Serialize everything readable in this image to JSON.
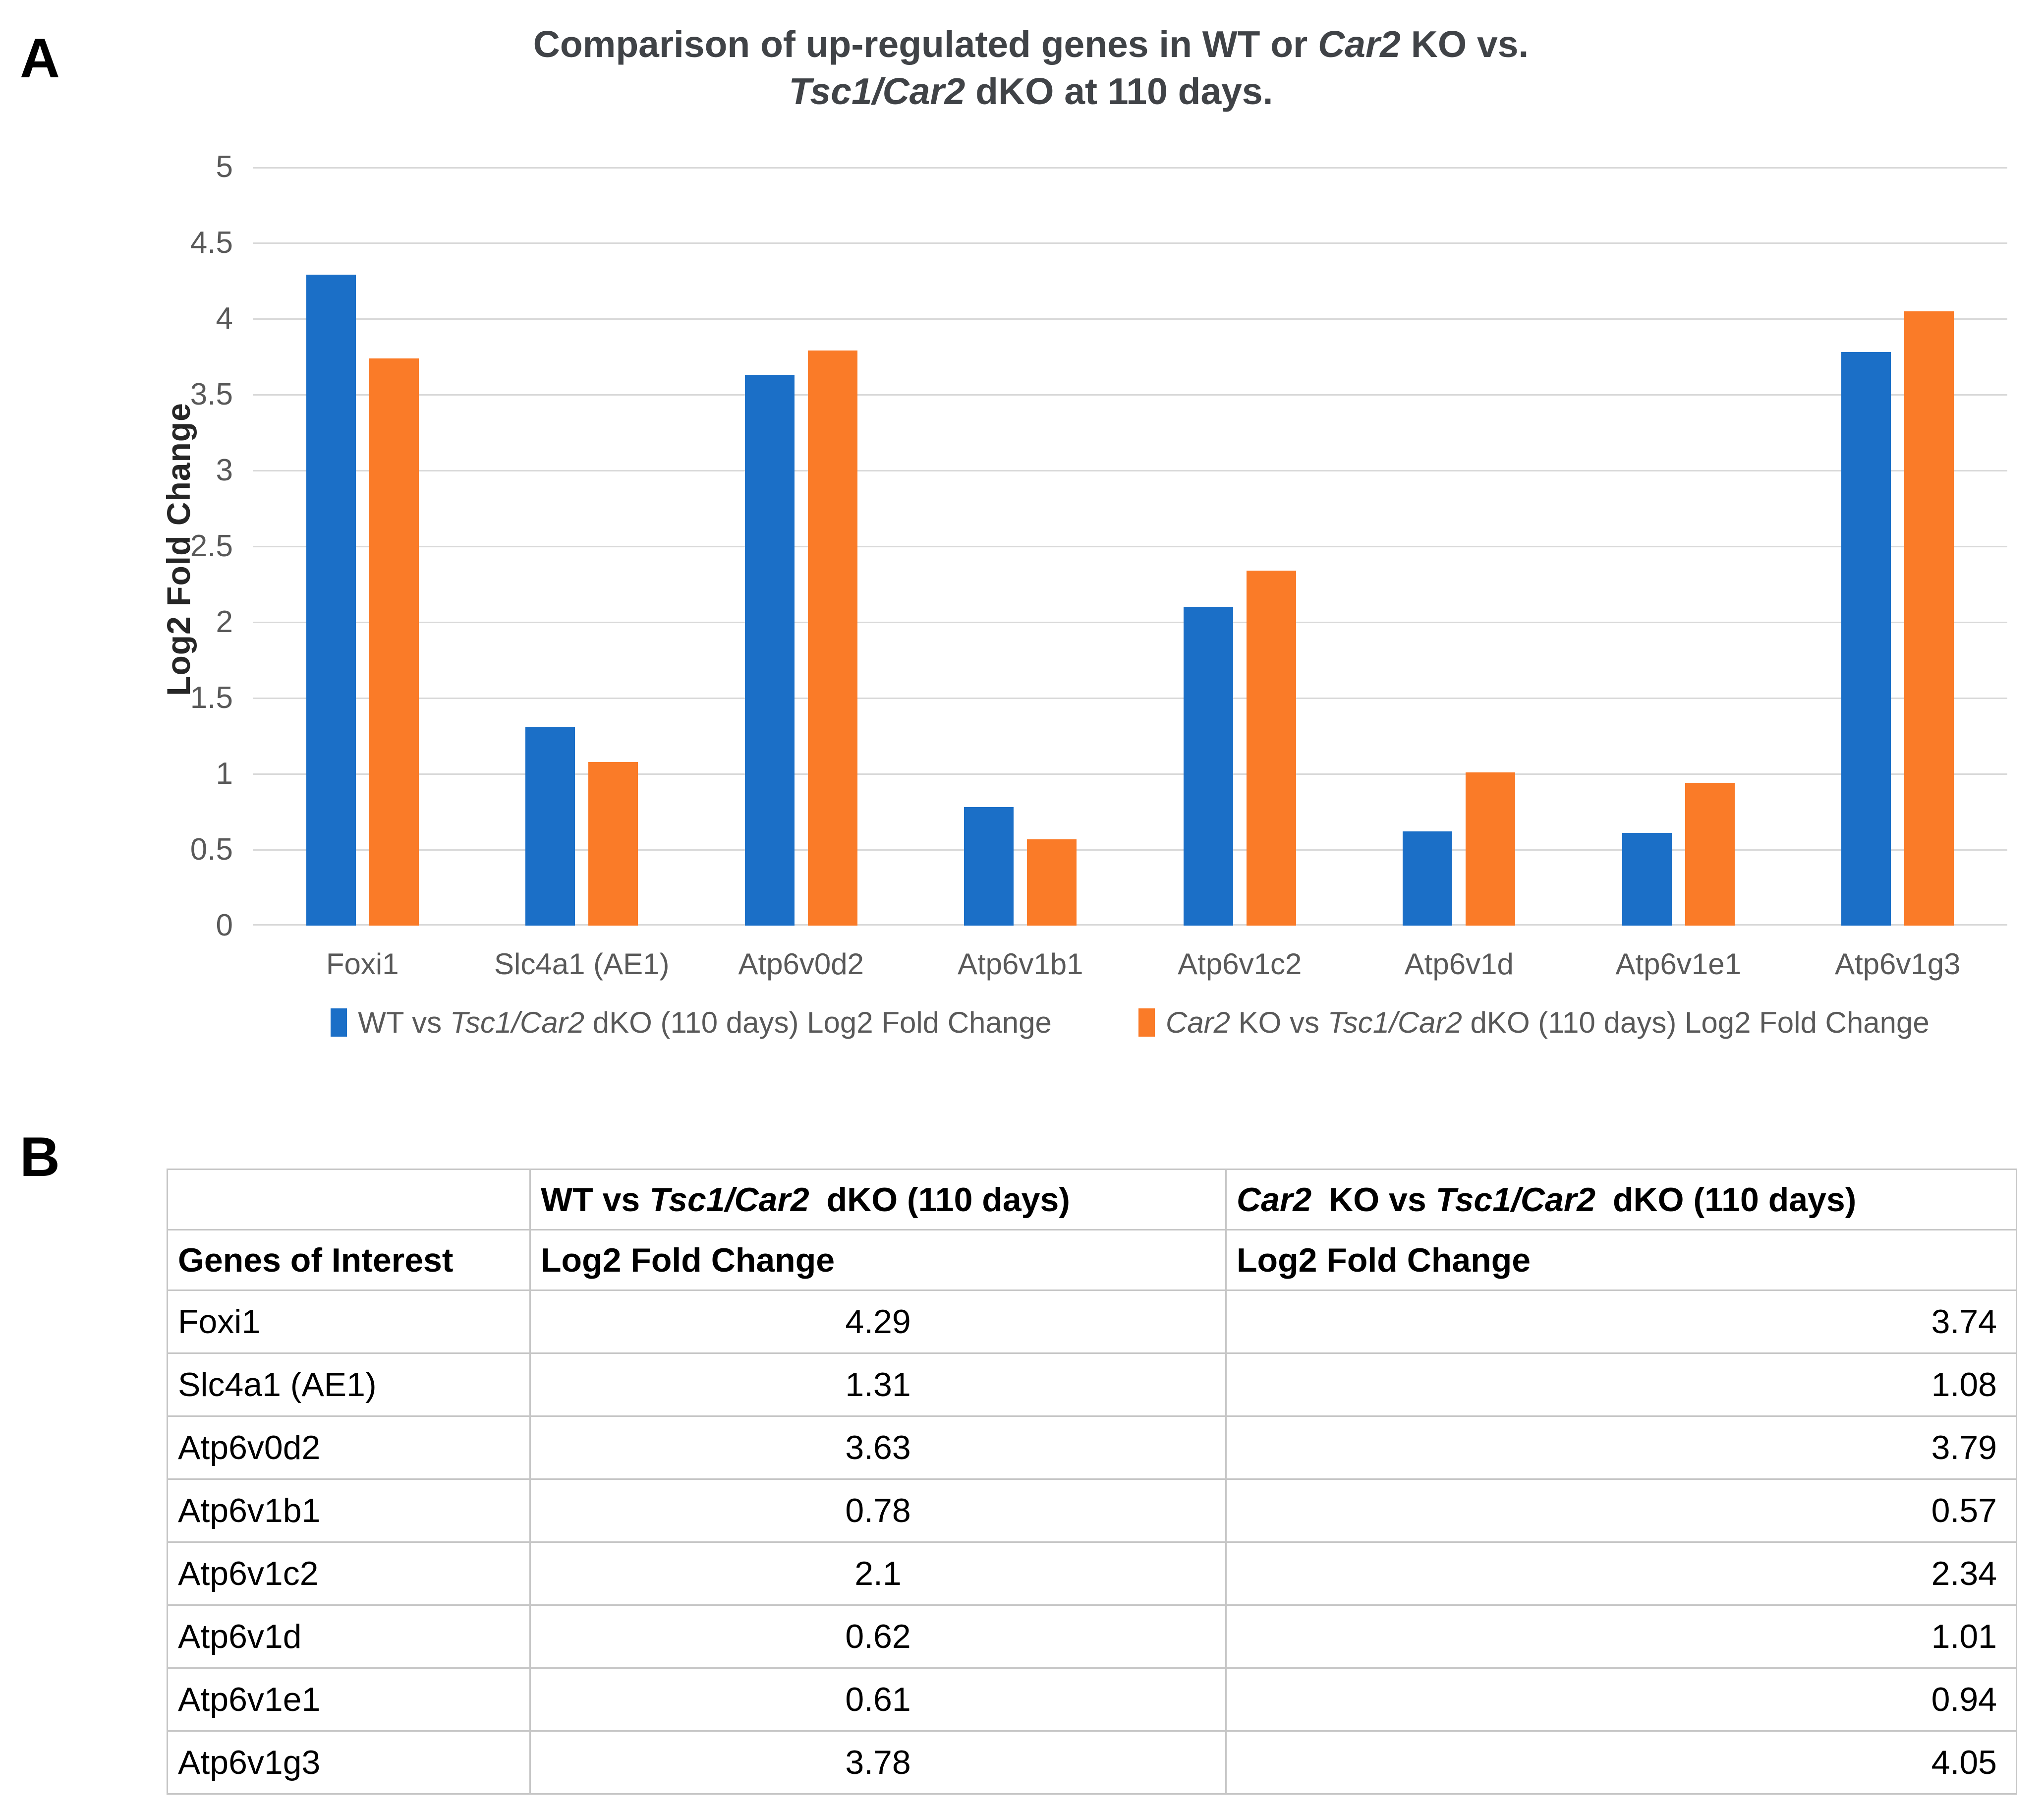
{
  "figure": {
    "panel_a_label": "A",
    "panel_b_label": "B"
  },
  "chart": {
    "title_line1_segments": [
      {
        "t": "Comparison of up-regulated genes in WT or "
      },
      {
        "t": "Car2",
        "i": true
      },
      {
        "t": " KO vs."
      }
    ],
    "title_line2_segments": [
      {
        "t": "Tsc1/Car2",
        "i": true
      },
      {
        "t": " dKO at 110 days."
      }
    ],
    "y_axis_title": "Log2 Fold Change",
    "y_tick_labels": [
      "0",
      "0.5",
      "1",
      "1.5",
      "2",
      "2.5",
      "3",
      "3.5",
      "4",
      "4.5",
      "5"
    ],
    "gridline_color": "#d9d9d9",
    "legend": [
      {
        "color": "#1b6fc7",
        "segments": [
          {
            "t": "WT vs "
          },
          {
            "t": "Tsc1/Car2",
            "i": true
          },
          {
            "t": " dKO (110 days) Log2 Fold Change"
          }
        ]
      },
      {
        "color": "#fa7b28",
        "segments": [
          {
            "t": "Car2",
            "i": true
          },
          {
            "t": " KO vs "
          },
          {
            "t": "Tsc1/Car2",
            "i": true
          },
          {
            "t": " dKO (110 days) Log2 Fold Change"
          }
        ]
      }
    ]
  },
  "chart_data": {
    "type": "bar",
    "title": "Comparison of up-regulated genes in WT or Car2 KO vs. Tsc1/Car2 dKO at 110 days.",
    "categories": [
      "Foxi1",
      "Slc4a1 (AE1)",
      "Atp6v0d2",
      "Atp6v1b1",
      "Atp6v1c2",
      "Atp6v1d",
      "Atp6v1e1",
      "Atp6v1g3"
    ],
    "series": [
      {
        "name": "WT vs Tsc1/Car2 dKO (110 days) Log2 Fold Change",
        "color": "#1b6fc7",
        "values": [
          4.29,
          1.31,
          3.63,
          0.78,
          2.1,
          0.62,
          0.61,
          3.78
        ]
      },
      {
        "name": "Car2 KO vs Tsc1/Car2 dKO (110 days) Log2 Fold Change",
        "color": "#fa7b28",
        "values": [
          3.74,
          1.08,
          3.79,
          0.57,
          2.34,
          1.01,
          0.94,
          4.05
        ]
      }
    ],
    "xlabel": "",
    "ylabel": "Log2 Fold Change",
    "ylim": [
      0,
      5
    ],
    "ytick_step": 0.5,
    "grid": true,
    "legend_position": "bottom"
  },
  "table": {
    "header_row1": {
      "col1_segments": [],
      "col2_segments": [
        {
          "t": "WT vs "
        },
        {
          "t": "Tsc1/Car2",
          "i": true
        },
        {
          "t": " dKO (110 days)"
        }
      ],
      "col3_segments": [
        {
          "t": "Car2",
          "i": true
        },
        {
          "t": " KO vs "
        },
        {
          "t": "Tsc1/Car2",
          "i": true
        },
        {
          "t": " dKO (110 days)"
        }
      ]
    },
    "header_row2": {
      "col1": "Genes of Interest",
      "col2": "Log2 Fold Change",
      "col3": "Log2 Fold Change"
    },
    "rows": [
      {
        "gene": "Foxi1",
        "wt": "4.29",
        "car2": "3.74"
      },
      {
        "gene": "Slc4a1 (AE1)",
        "wt": "1.31",
        "car2": "1.08"
      },
      {
        "gene": "Atp6v0d2",
        "wt": "3.63",
        "car2": "3.79"
      },
      {
        "gene": "Atp6v1b1",
        "wt": "0.78",
        "car2": "0.57"
      },
      {
        "gene": "Atp6v1c2",
        "wt": "2.1",
        "car2": "2.34"
      },
      {
        "gene": "Atp6v1d",
        "wt": "0.62",
        "car2": "1.01"
      },
      {
        "gene": "Atp6v1e1",
        "wt": "0.61",
        "car2": "0.94"
      },
      {
        "gene": "Atp6v1g3",
        "wt": "3.78",
        "car2": "4.05"
      }
    ]
  }
}
